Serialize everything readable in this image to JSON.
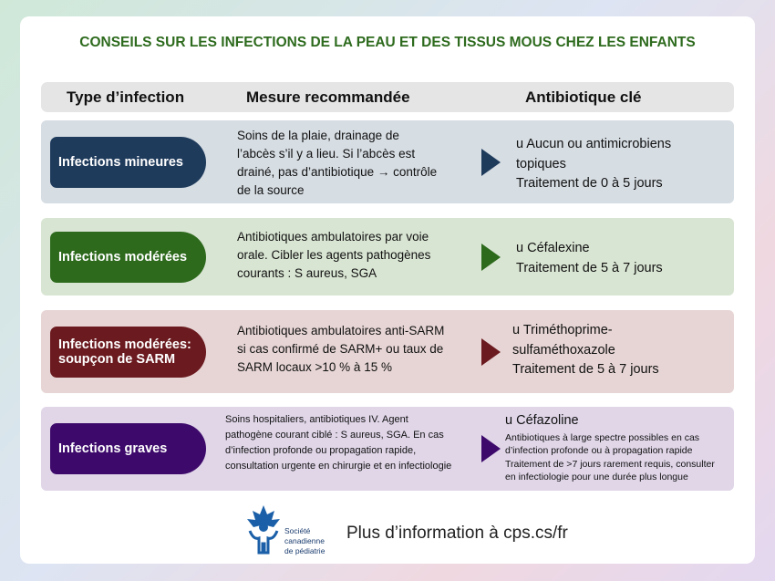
{
  "header": {
    "title": "CONSEILS SUR LES INFECTIONS DE LA PEAU ET DES TISSUS MOUS CHEZ LES ENFANTS"
  },
  "columns": [
    "Type d’infection",
    "Mesure recommandée",
    "Antibiotique clé"
  ],
  "rows": [
    {
      "label": [
        "Infections mineures"
      ],
      "measure": [
        "Soins de la plaie, drainage de",
        "l’abcès s’il y a lieu. Si l’abcès est",
        "drainé, pas d’antibiotique → contrôle",
        "de la source"
      ],
      "antibiotic": [
        "u Aucun ou antimicrobiens",
        "topiques",
        "Traitement de 0 à 5 jours"
      ]
    },
    {
      "label": [
        "Infections modérées"
      ],
      "measure": [
        "Antibiotiques ambulatoires par voie",
        "orale. Cibler les agents pathogènes",
        "courants : S aureus, SGA"
      ],
      "antibiotic": [
        "u Céfalexine",
        "Traitement de 5 à 7 jours"
      ]
    },
    {
      "label": [
        "Infections modérées:",
        "soupçon de SARM"
      ],
      "measure": [
        "Antibiotiques ambulatoires anti-SARM",
        "si cas confirmé de SARM+ ou taux de",
        "SARM locaux >10 % à 15 %"
      ],
      "antibiotic": [
        "u Triméthoprime-",
        "sulfaméthoxazole",
        "Traitement de 5 à 7 jours"
      ]
    },
    {
      "label": [
        "Infections graves"
      ],
      "measure": [
        "Soins hospitaliers, antibiotiques IV. Agent",
        "pathogène courant ciblé : S aureus, SGA. En cas",
        "d’infection profonde ou propagation rapide,",
        "consultation urgente en chirurgie et en infectiologie"
      ],
      "antibiotic": [
        "u Céfazoline",
        "Antibiotiques à large spectre possibles en cas",
        "d’infection profonde ou à propagation rapide",
        "Traitement de >7 jours rarement requis, consulter",
        "en infectiologie pour une durée plus longue"
      ]
    }
  ],
  "footer": {
    "logo_text": [
      "Société",
      "canadienne",
      "de pédiatrie"
    ],
    "link": "Plus d’information à cps.cs/fr"
  }
}
